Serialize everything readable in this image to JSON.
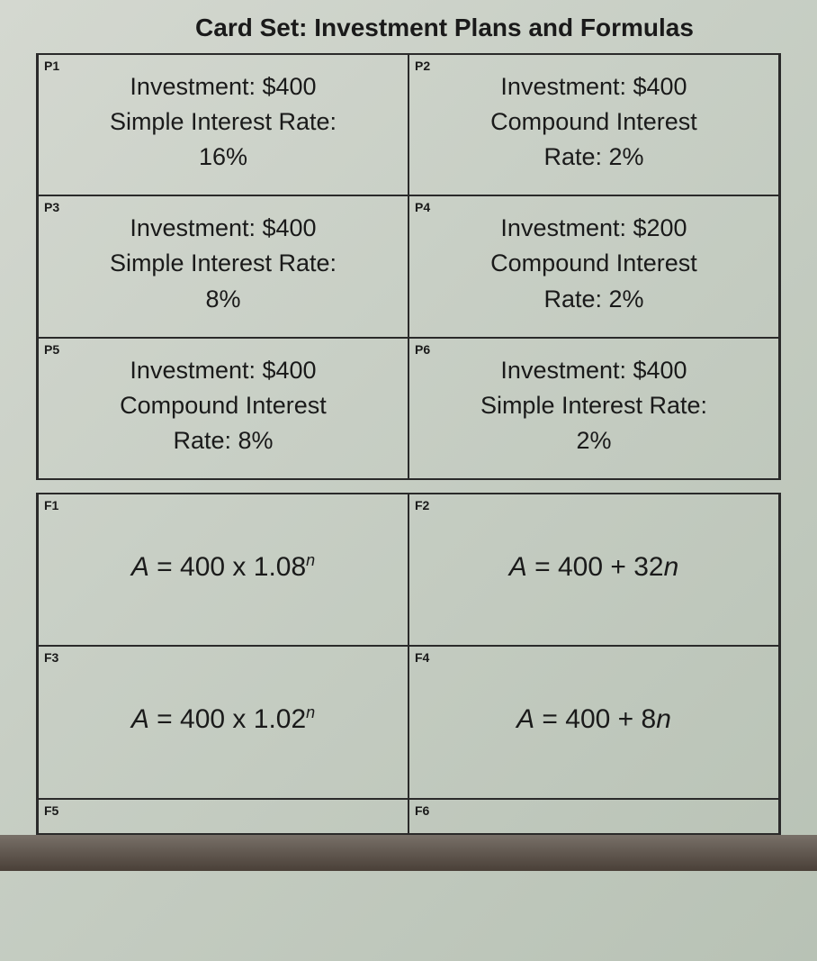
{
  "document": {
    "title": "Card Set: Investment Plans and Formulas",
    "background_gradient": [
      "#d4d8d0",
      "#c8cfc5",
      "#b8c2b5"
    ],
    "border_color": "#2a2a2a",
    "text_color": "#1a1a1a",
    "title_fontsize": 28,
    "body_fontsize": 27,
    "formula_fontsize": 30,
    "label_fontsize": 14
  },
  "plan_cards": [
    {
      "id": "P1",
      "line1": "Investment: $400",
      "line2": "Simple Interest Rate:",
      "line3": "16%"
    },
    {
      "id": "P2",
      "line1": "Investment: $400",
      "line2": "Compound Interest",
      "line3": "Rate: 2%"
    },
    {
      "id": "P3",
      "line1": "Investment: $400",
      "line2": "Simple Interest Rate:",
      "line3": "8%"
    },
    {
      "id": "P4",
      "line1": "Investment: $200",
      "line2": "Compound Interest",
      "line3": "Rate: 2%"
    },
    {
      "id": "P5",
      "line1": "Investment: $400",
      "line2": "Compound Interest",
      "line3": "Rate: 8%"
    },
    {
      "id": "P6",
      "line1": "Investment: $400",
      "line2": "Simple Interest Rate:",
      "line3": "2%"
    }
  ],
  "formula_cards": [
    {
      "id": "F1",
      "formula_variable": "A",
      "formula_equals": " = ",
      "formula_body": "400 x 1.08",
      "formula_exponent": "n",
      "formula_tail": ""
    },
    {
      "id": "F2",
      "formula_variable": "A",
      "formula_equals": " = ",
      "formula_body": "400 + 32",
      "formula_exponent": "",
      "formula_tail": "n"
    },
    {
      "id": "F3",
      "formula_variable": "A",
      "formula_equals": " = ",
      "formula_body": "400 x 1.02",
      "formula_exponent": "n",
      "formula_tail": ""
    },
    {
      "id": "F4",
      "formula_variable": "A",
      "formula_equals": " = ",
      "formula_body": "400 + 8",
      "formula_exponent": "",
      "formula_tail": "n"
    },
    {
      "id": "F5",
      "formula_variable": "",
      "formula_equals": "",
      "formula_body": "",
      "formula_exponent": "",
      "formula_tail": ""
    },
    {
      "id": "F6",
      "formula_variable": "",
      "formula_equals": "",
      "formula_body": "",
      "formula_exponent": "",
      "formula_tail": ""
    }
  ]
}
